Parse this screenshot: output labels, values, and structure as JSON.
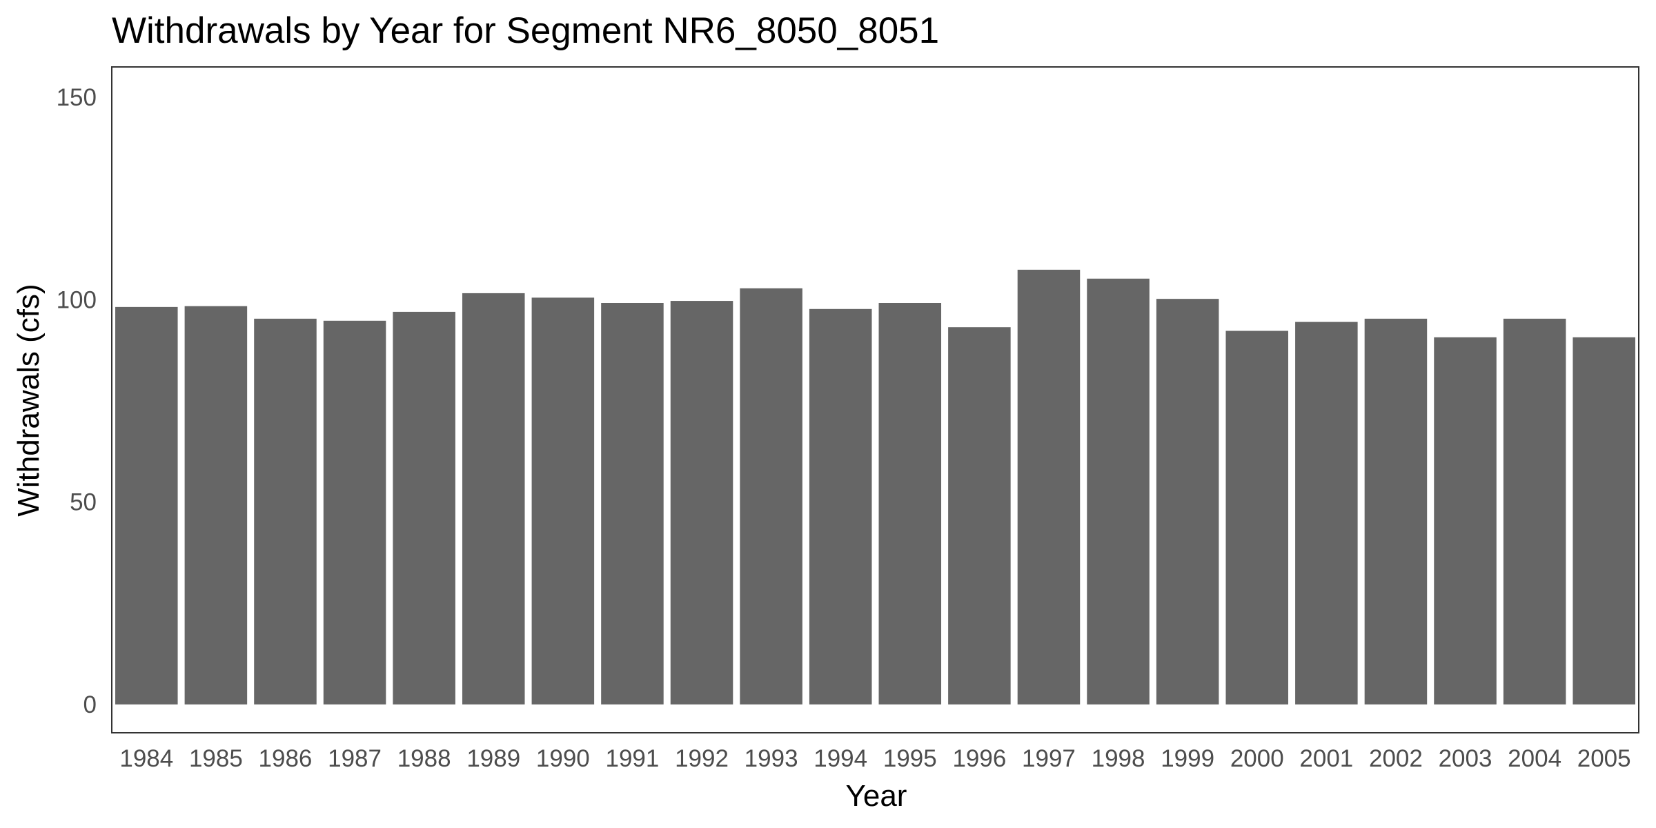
{
  "chart_data": {
    "type": "bar",
    "title": "Withdrawals by Year for Segment NR6_8050_8051",
    "xlabel": "Year",
    "ylabel": "Withdrawals (cfs)",
    "ylim": [
      -7,
      157.5
    ],
    "yticks": [
      0,
      50,
      100,
      150
    ],
    "ytick_labels": [
      "0",
      "50",
      "100",
      "150"
    ],
    "categories": [
      "1984",
      "1985",
      "1986",
      "1987",
      "1988",
      "1989",
      "1990",
      "1991",
      "1992",
      "1993",
      "1994",
      "1995",
      "1996",
      "1997",
      "1998",
      "1999",
      "2000",
      "2001",
      "2002",
      "2003",
      "2004",
      "2005"
    ],
    "values": [
      98.2,
      98.4,
      95.3,
      94.8,
      97.0,
      101.6,
      100.5,
      99.2,
      99.7,
      102.8,
      97.7,
      99.2,
      93.2,
      107.4,
      105.2,
      100.2,
      92.3,
      94.5,
      95.3,
      90.7,
      95.3,
      90.7
    ],
    "bar_color": "#666666",
    "grid": false,
    "legend": "none"
  }
}
